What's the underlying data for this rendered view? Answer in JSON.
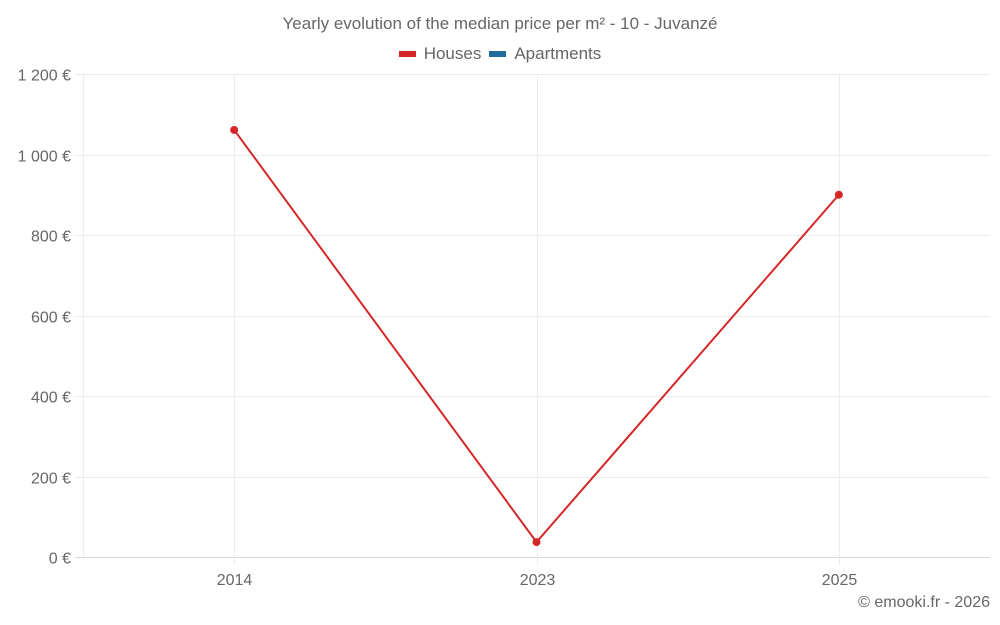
{
  "chart_data": {
    "type": "line",
    "title": "Yearly evolution of the median price per m² - 10 - Juvanzé",
    "categories": [
      "2014",
      "2023",
      "2025"
    ],
    "series": [
      {
        "name": "Houses",
        "color": "#d62728",
        "values": [
          1061,
          37,
          900
        ]
      },
      {
        "name": "Apartments",
        "color": "#1f6b9e",
        "values": []
      }
    ],
    "xlabel": "",
    "ylabel": "",
    "ylim": [
      0,
      1200
    ],
    "yticks": [
      0,
      200,
      400,
      600,
      800,
      1000,
      1200
    ],
    "ytick_labels": [
      "0 €",
      "200 €",
      "400 €",
      "600 €",
      "800 €",
      "1 000 €",
      "1 200 €"
    ],
    "grid": true,
    "legend_position": "top"
  },
  "legend": {
    "houses_label": "Houses",
    "apartments_label": "Apartments",
    "houses_color": "#d62728",
    "apartments_color": "#1f6b9e"
  },
  "credit": "© emooki.fr - 2026"
}
